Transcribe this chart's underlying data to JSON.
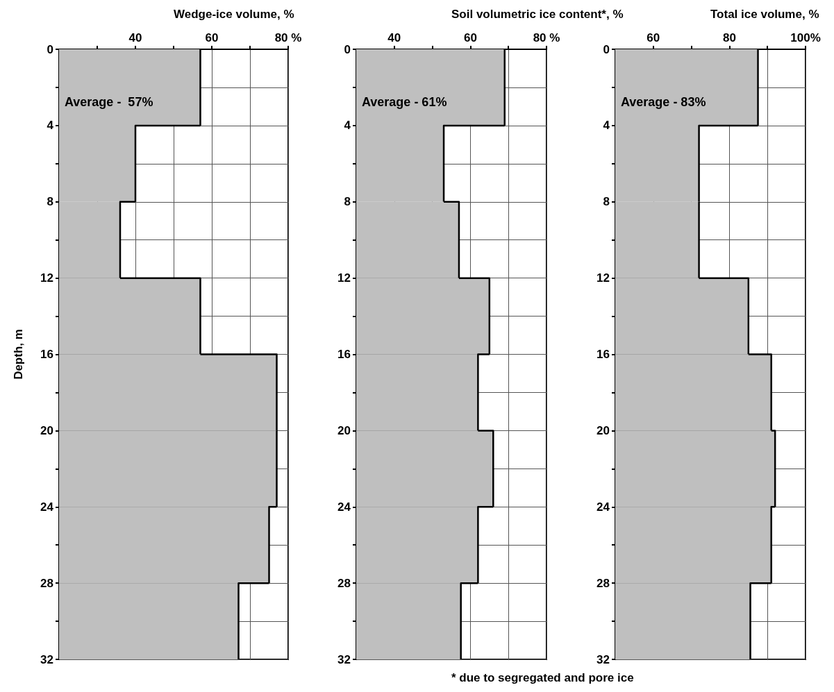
{
  "chart_data": [
    {
      "type": "bar",
      "orientation": "horizontal",
      "title": "Wedge-ice volume, %",
      "ylabel": "Depth, m",
      "x": [
        2,
        6,
        10,
        14,
        18,
        22,
        26,
        30
      ],
      "series": [
        {
          "color": "#bfbfbf",
          "values": [
            57,
            40,
            36,
            57,
            77,
            77,
            75,
            67
          ]
        }
      ],
      "xlim": [
        20,
        80
      ],
      "xticks": [
        {
          "value": 30,
          "label": null
        },
        40,
        {
          "value": 50,
          "label": null
        },
        60,
        {
          "value": 70,
          "label": null
        },
        {
          "value": 80,
          "label": "80 %"
        }
      ],
      "ylim": [
        32,
        0
      ],
      "yticks": [
        0,
        {
          "value": 2,
          "label": null
        },
        4,
        {
          "value": 6,
          "label": null
        },
        8,
        {
          "value": 10,
          "label": null
        },
        12,
        {
          "value": 14,
          "label": null
        },
        16,
        {
          "value": 18,
          "label": null
        },
        20,
        {
          "value": 22,
          "label": null
        },
        24,
        {
          "value": 26,
          "label": null
        },
        28,
        {
          "value": 30,
          "label": null
        },
        32
      ],
      "grid": true,
      "annotations": [
        "Average -  57%"
      ]
    },
    {
      "type": "bar",
      "orientation": "horizontal",
      "title": "Soil volumetric ice content*, %",
      "x": [
        2,
        6,
        10,
        14,
        18,
        22,
        26,
        30
      ],
      "series": [
        {
          "color": "#bfbfbf",
          "values": [
            69,
            53,
            57,
            65,
            62,
            66,
            62,
            57.5
          ]
        }
      ],
      "xlim": [
        30,
        80
      ],
      "xticks": [
        40,
        {
          "value": 50,
          "label": null
        },
        60,
        {
          "value": 70,
          "label": null
        },
        {
          "value": 80,
          "label": "80 %"
        }
      ],
      "ylim": [
        32,
        0
      ],
      "yticks": [
        0,
        {
          "value": 2,
          "label": null
        },
        4,
        {
          "value": 6,
          "label": null
        },
        8,
        {
          "value": 10,
          "label": null
        },
        12,
        {
          "value": 14,
          "label": null
        },
        16,
        {
          "value": 18,
          "label": null
        },
        20,
        {
          "value": 22,
          "label": null
        },
        24,
        {
          "value": 26,
          "label": null
        },
        28,
        {
          "value": 30,
          "label": null
        },
        32
      ],
      "grid": true,
      "annotations": [
        "Average - 61%",
        "* due to segregated and pore ice"
      ]
    },
    {
      "type": "bar",
      "orientation": "horizontal",
      "title": "Total ice volume, %",
      "x": [
        2,
        6,
        10,
        14,
        18,
        22,
        26,
        30
      ],
      "series": [
        {
          "color": "#bfbfbf",
          "values": [
            87.5,
            72,
            72,
            85,
            91,
            92,
            91,
            85.5
          ]
        }
      ],
      "xlim": [
        50,
        100
      ],
      "xticks": [
        60,
        {
          "value": 70,
          "label": null
        },
        80,
        {
          "value": 90,
          "label": null
        },
        {
          "value": 100,
          "label": "100%"
        }
      ],
      "ylim": [
        32,
        0
      ],
      "yticks": [
        0,
        {
          "value": 2,
          "label": null
        },
        4,
        {
          "value": 6,
          "label": null
        },
        8,
        {
          "value": 10,
          "label": null
        },
        12,
        {
          "value": 14,
          "label": null
        },
        16,
        {
          "value": 18,
          "label": null
        },
        20,
        {
          "value": 22,
          "label": null
        },
        24,
        {
          "value": 26,
          "label": null
        },
        28,
        {
          "value": 30,
          "label": null
        },
        32
      ],
      "grid": true,
      "annotations": [
        "Average - 83%"
      ]
    }
  ]
}
